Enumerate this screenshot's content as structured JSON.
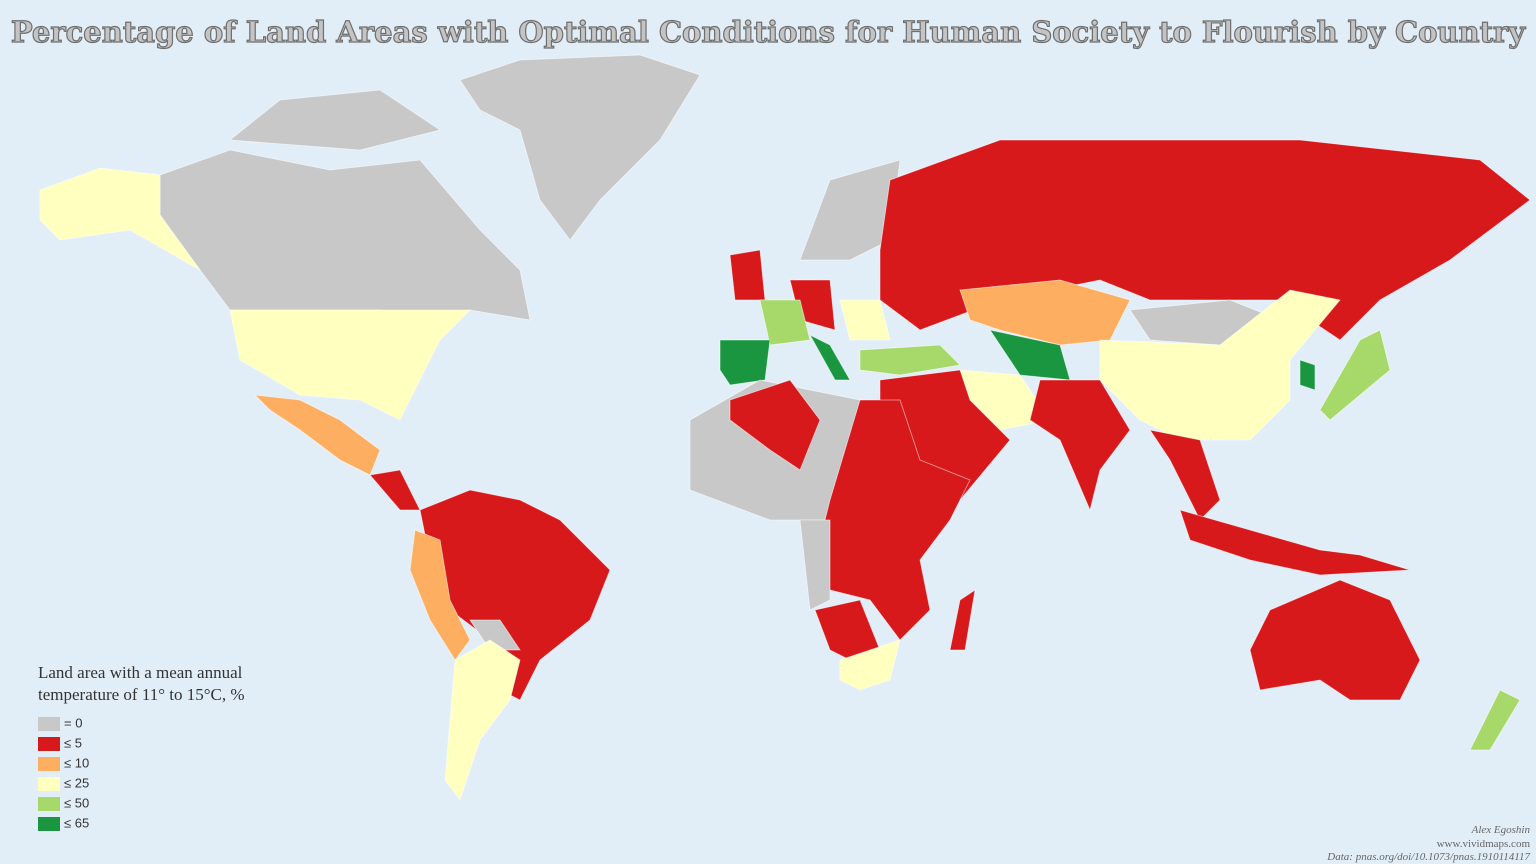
{
  "header": {
    "title": "Percentage of Land Areas with Optimal Conditions for Human Society to Flourish by Country"
  },
  "legend": {
    "title_lines": [
      "Land area with a mean annual",
      "temperature of 11° to 15°C, %"
    ],
    "items": [
      {
        "label": "= 0",
        "color": "#c8c8c8"
      },
      {
        "label": "≤ 5",
        "color": "#d7191c"
      },
      {
        "label": "≤ 10",
        "color": "#fdae61"
      },
      {
        "label": "≤ 25",
        "color": "#ffffbf"
      },
      {
        "label": "≤ 50",
        "color": "#a6d96a"
      },
      {
        "label": "≤ 65",
        "color": "#1a9641"
      }
    ]
  },
  "credits": {
    "author": "Alex Egoshin",
    "site": "www.vividmaps.com",
    "source": "Data: pnas.org/doi/10.1073/pnas.1910114117"
  }
}
